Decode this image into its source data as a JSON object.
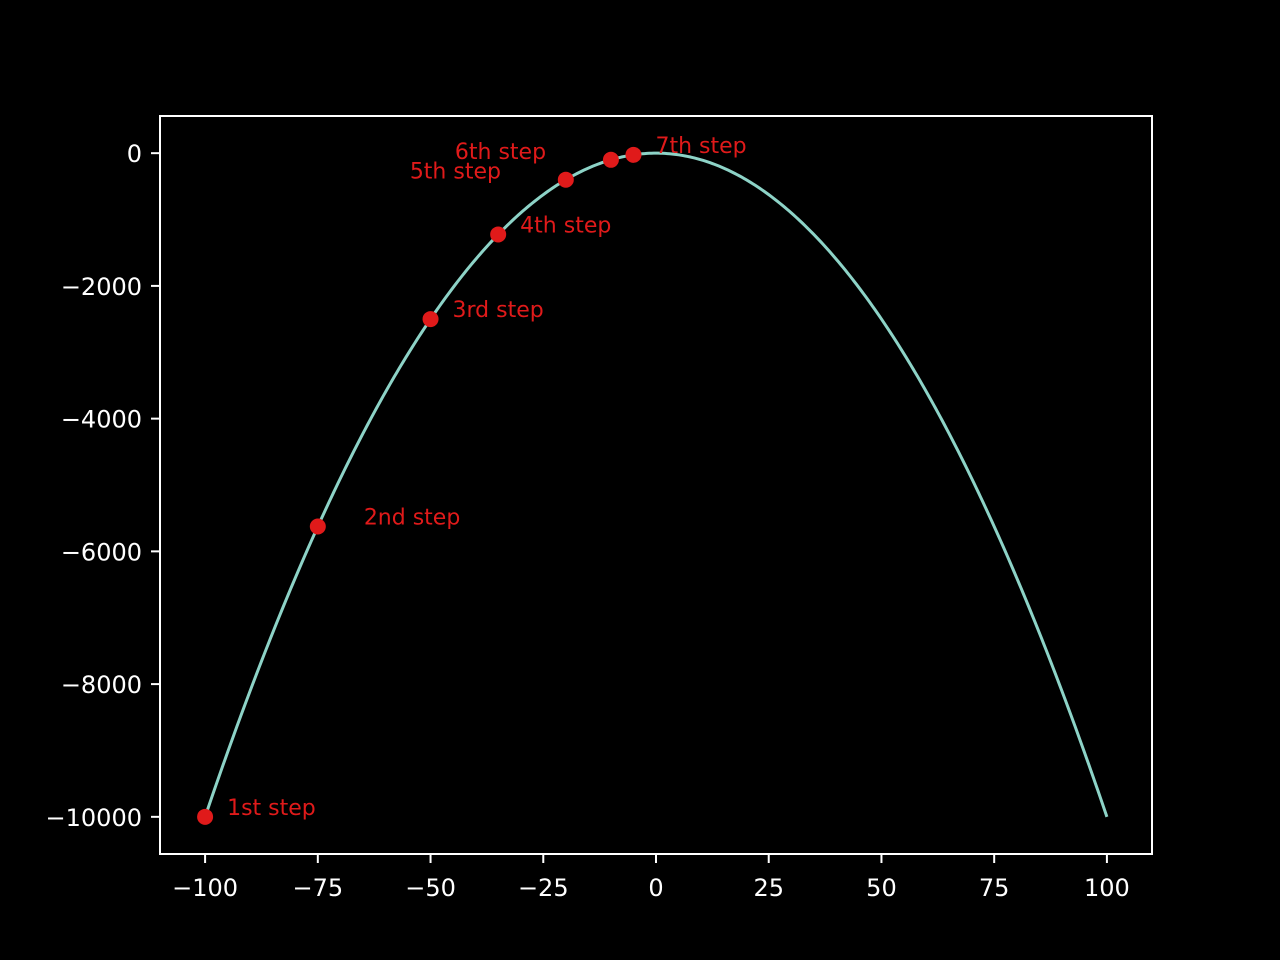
{
  "chart_data": {
    "type": "line",
    "title": "",
    "xlabel": "",
    "ylabel": "",
    "xlim": [
      -110,
      110
    ],
    "ylim": [
      -10560,
      560
    ],
    "xticks": [
      -100,
      -75,
      -50,
      -25,
      0,
      25,
      50,
      75,
      100
    ],
    "xtick_labels": [
      "−100",
      "−75",
      "−50",
      "−25",
      "0",
      "25",
      "50",
      "75",
      "100"
    ],
    "yticks": [
      0,
      -2000,
      -4000,
      -6000,
      -8000,
      -10000
    ],
    "ytick_labels": [
      "0",
      "−2000",
      "−4000",
      "−6000",
      "−8000",
      "−10000"
    ],
    "grid": false,
    "background": "#000000",
    "axes_color": "#ffffff",
    "curve": {
      "equation": "y = -x^2",
      "x_range": [
        -100,
        100
      ],
      "color": "#8dd3c7"
    },
    "points": {
      "color": "#e01a1a",
      "label_color": "#e01a1a",
      "items": [
        {
          "x": -100,
          "y": -10000,
          "label": "1st step"
        },
        {
          "x": -75,
          "y": -5625,
          "label": "2nd step"
        },
        {
          "x": -50,
          "y": -2500,
          "label": "3rd step"
        },
        {
          "x": -35,
          "y": -1225,
          "label": "4th step"
        },
        {
          "x": -20,
          "y": -400,
          "label": "5th step"
        },
        {
          "x": -10,
          "y": -100,
          "label": "6th step"
        },
        {
          "x": -5,
          "y": -25,
          "label": "7th step"
        }
      ]
    }
  }
}
